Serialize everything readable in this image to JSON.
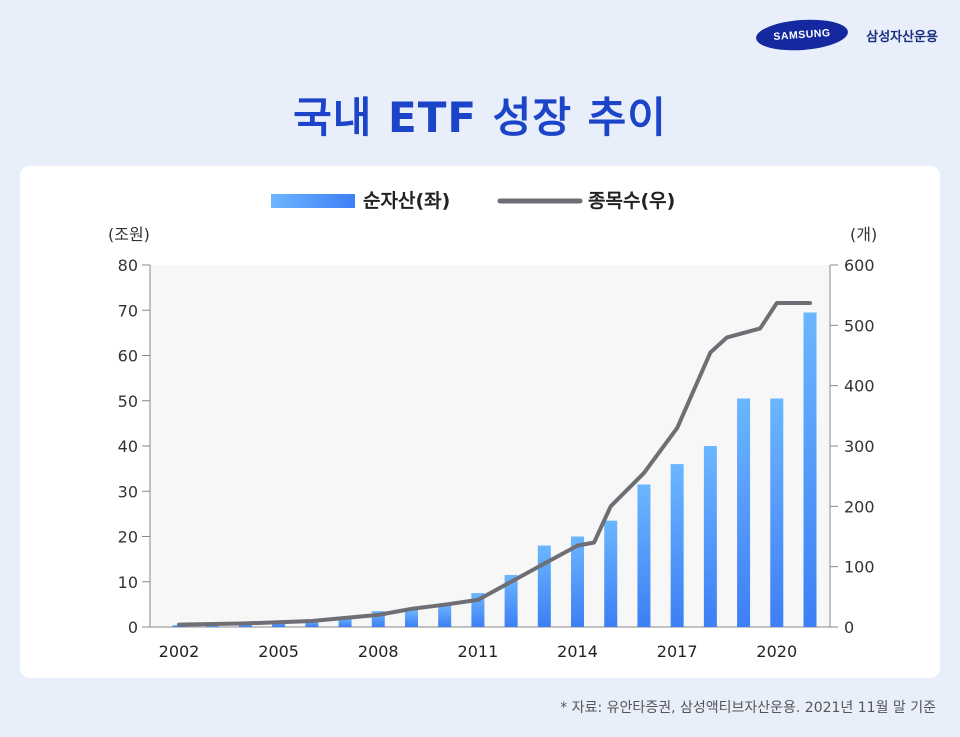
{
  "brand": {
    "logo_text": "SAMSUNG",
    "name": "삼성자산운용"
  },
  "title": "국내 ETF 성장 추이",
  "source": "* 자료: 유안타증권, 삼성액티브자산운용. 2021년 11월 말 기준",
  "colors": {
    "title": "#1b44c8",
    "bar_top": "#6bb6ff",
    "bar_bottom": "#3d7ff5",
    "line": "#6d6f75",
    "plot_bg": "#f7f7f7"
  },
  "chart_data": {
    "type": "bar",
    "legend": [
      {
        "label": "순자산(좌)",
        "kind": "bar"
      },
      {
        "label": "종목수(우)",
        "kind": "line"
      }
    ],
    "legend_position": "top-center",
    "y_left_label": "(조원)",
    "y_right_label": "(개)",
    "y_left_range": [
      0,
      80
    ],
    "y_left_ticks": [
      0,
      10,
      20,
      30,
      40,
      50,
      60,
      70,
      80
    ],
    "y_right_range": [
      0,
      600
    ],
    "y_right_ticks": [
      0,
      100,
      200,
      300,
      400,
      500,
      600
    ],
    "x_ticks": [
      "2002",
      "2005",
      "2008",
      "2011",
      "2014",
      "2017",
      "2020"
    ],
    "x": [
      2002,
      2003,
      2004,
      2005,
      2006,
      2007,
      2008,
      2009,
      2010,
      2011,
      2012,
      2013,
      2014,
      2015,
      2016,
      2017,
      2018,
      2019,
      2020,
      2021
    ],
    "series": [
      {
        "name": "순자산(좌)",
        "type": "bar",
        "axis": "left",
        "values": [
          0.4,
          0.4,
          0.8,
          1.3,
          1.5,
          2.0,
          3.5,
          3.8,
          5.0,
          7.5,
          11.5,
          18.0,
          20.0,
          23.5,
          31.5,
          36.0,
          40.0,
          50.5,
          50.5,
          69.5
        ]
      },
      {
        "name": "종목수(우)",
        "type": "line",
        "axis": "right",
        "values": [
          4,
          6,
          8,
          10,
          20,
          30,
          37,
          45,
          75,
          105,
          135,
          140,
          200,
          255,
          330,
          455,
          480,
          495,
          537,
          537
        ],
        "x": [
          2002,
          2004,
          2005,
          2006,
          2008,
          2009,
          2010,
          2011,
          2012,
          2013,
          2014,
          2014.5,
          2015,
          2016,
          2017,
          2018,
          2018.5,
          2019.5,
          2020,
          2021
        ]
      }
    ],
    "grid": false
  }
}
